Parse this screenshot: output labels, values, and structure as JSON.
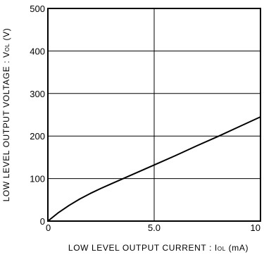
{
  "chart_data": {
    "type": "line",
    "title": "",
    "xlabel": "LOW  LEVEL  OUTPUT  CURRENT : I",
    "xlabel_subscript": "OL",
    "xlabel_unit": " (mA)",
    "ylabel": "LOW  LEVEL  OUTPUT  VOLTAGE : V",
    "ylabel_subscript": "OL",
    "ylabel_unit": " (V)",
    "xlim": [
      0,
      10
    ],
    "ylim": [
      0,
      500
    ],
    "x_ticks": [
      "0",
      "5.0",
      "10"
    ],
    "y_ticks": [
      "0",
      "100",
      "200",
      "300",
      "400",
      "500"
    ],
    "grid": true,
    "series": [
      {
        "values_x": [
          0,
          0.25,
          0.5,
          1.0,
          1.5,
          2.0,
          2.5,
          3.0,
          3.5,
          4.0,
          5.0,
          6.0,
          7.0,
          8.0,
          9.0,
          10.0
        ],
        "values_y": [
          0,
          10,
          20,
          37,
          52,
          65,
          77,
          88,
          99,
          110,
          132,
          154,
          177,
          199,
          222,
          245
        ],
        "color": "#000000"
      }
    ]
  }
}
